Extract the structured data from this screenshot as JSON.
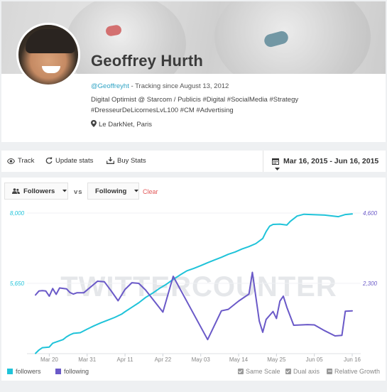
{
  "profile": {
    "name": "Geoffrey Hurth",
    "handle": "@Geoffreyht",
    "tracking": " - Tracking since August 13, 2012",
    "bio": "Digital Optimist @ Starcom / Publicis #Digital #SocialMedia #Strategy #DresseurDeLicornesLvL100 #CM #Advertising",
    "location": "Le DarkNet, Paris"
  },
  "toolbar": {
    "track_label": "Track",
    "update_label": "Update stats",
    "buy_label": "Buy Stats",
    "date_range": "Mar 16, 2015 - Jun 16, 2015"
  },
  "controls": {
    "metric1": "Followers",
    "vs": "vs",
    "metric2": "Following",
    "clear": "Clear"
  },
  "legend": {
    "followers": "followers",
    "following": "following",
    "same_scale": "Same Scale",
    "dual_axis": "Dual axis",
    "relative_growth": "Relative Growth"
  },
  "options": {
    "same_scale": true,
    "dual_axis": true,
    "relative_growth": false
  },
  "colors": {
    "followers": "#1fc3d9",
    "following": "#6a59c8",
    "clear": "#e25858",
    "handle": "#2fa3c4"
  },
  "watermark": "TWITTERCOUNTER",
  "chart_data": {
    "type": "line",
    "dual_axis": true,
    "x_ticks": [
      "Mar 20",
      "Mar 31",
      "Apr 11",
      "Apr 22",
      "May 03",
      "May 14",
      "May 25",
      "Jun 05",
      "Jun 16"
    ],
    "y_left_ticks": [
      "8,000",
      "5,650"
    ],
    "y_right_ticks": [
      "4,600",
      "2,300"
    ],
    "ylim_left": [
      3300,
      8000
    ],
    "ylim_right": [
      0,
      4600
    ],
    "series": [
      {
        "name": "followers",
        "axis": "left",
        "points": [
          [
            "2015-03-16",
            3310
          ],
          [
            "2015-03-17",
            3420
          ],
          [
            "2015-03-18",
            3500
          ],
          [
            "2015-03-20",
            3520
          ],
          [
            "2015-03-21",
            3650
          ],
          [
            "2015-03-22",
            3690
          ],
          [
            "2015-03-24",
            3770
          ],
          [
            "2015-03-25",
            3860
          ],
          [
            "2015-03-26",
            3930
          ],
          [
            "2015-03-27",
            3980
          ],
          [
            "2015-03-29",
            4000
          ],
          [
            "2015-03-31",
            4120
          ],
          [
            "2015-04-02",
            4230
          ],
          [
            "2015-04-04",
            4330
          ],
          [
            "2015-04-06",
            4420
          ],
          [
            "2015-04-08",
            4510
          ],
          [
            "2015-04-10",
            4620
          ],
          [
            "2015-04-11",
            4700
          ],
          [
            "2015-04-13",
            4850
          ],
          [
            "2015-04-15",
            5000
          ],
          [
            "2015-04-17",
            5180
          ],
          [
            "2015-04-19",
            5320
          ],
          [
            "2015-04-21",
            5480
          ],
          [
            "2015-04-23",
            5620
          ],
          [
            "2015-04-25",
            5780
          ],
          [
            "2015-04-27",
            5930
          ],
          [
            "2015-04-29",
            6070
          ],
          [
            "2015-05-01",
            6150
          ],
          [
            "2015-05-03",
            6240
          ],
          [
            "2015-05-05",
            6340
          ],
          [
            "2015-05-07",
            6430
          ],
          [
            "2015-05-09",
            6520
          ],
          [
            "2015-05-11",
            6620
          ],
          [
            "2015-05-13",
            6700
          ],
          [
            "2015-05-15",
            6800
          ],
          [
            "2015-05-17",
            6880
          ],
          [
            "2015-05-19",
            6980
          ],
          [
            "2015-05-21",
            7150
          ],
          [
            "2015-05-22",
            7380
          ],
          [
            "2015-05-23",
            7560
          ],
          [
            "2015-05-24",
            7620
          ],
          [
            "2015-05-26",
            7630
          ],
          [
            "2015-05-28",
            7600
          ],
          [
            "2015-05-29",
            7720
          ],
          [
            "2015-05-31",
            7900
          ],
          [
            "2015-06-02",
            7960
          ],
          [
            "2015-06-04",
            7950
          ],
          [
            "2015-06-08",
            7930
          ],
          [
            "2015-06-12",
            7880
          ],
          [
            "2015-06-14",
            7950
          ],
          [
            "2015-06-16",
            7970
          ]
        ]
      },
      {
        "name": "following",
        "axis": "right",
        "points": [
          [
            "2015-03-16",
            1920
          ],
          [
            "2015-03-17",
            2050
          ],
          [
            "2015-03-18",
            2060
          ],
          [
            "2015-03-19",
            2050
          ],
          [
            "2015-03-20",
            1880
          ],
          [
            "2015-03-21",
            2130
          ],
          [
            "2015-03-22",
            1940
          ],
          [
            "2015-03-23",
            2150
          ],
          [
            "2015-03-25",
            2120
          ],
          [
            "2015-03-26",
            2000
          ],
          [
            "2015-03-27",
            1950
          ],
          [
            "2015-03-28",
            1990
          ],
          [
            "2015-03-30",
            1990
          ],
          [
            "2015-04-01",
            2180
          ],
          [
            "2015-04-03",
            2370
          ],
          [
            "2015-04-05",
            2350
          ],
          [
            "2015-04-07",
            2050
          ],
          [
            "2015-04-09",
            1730
          ],
          [
            "2015-04-11",
            2100
          ],
          [
            "2015-04-13",
            2320
          ],
          [
            "2015-04-15",
            2300
          ],
          [
            "2015-04-17",
            2080
          ],
          [
            "2015-04-22",
            1360
          ],
          [
            "2015-04-25",
            2530
          ],
          [
            "2015-05-05",
            460
          ],
          [
            "2015-05-09",
            1400
          ],
          [
            "2015-05-11",
            1450
          ],
          [
            "2015-05-14",
            1720
          ],
          [
            "2015-05-17",
            1950
          ],
          [
            "2015-05-18",
            2660
          ],
          [
            "2015-05-20",
            1070
          ],
          [
            "2015-05-21",
            700
          ],
          [
            "2015-05-22",
            1120
          ],
          [
            "2015-05-24",
            1380
          ],
          [
            "2015-05-25",
            1150
          ],
          [
            "2015-05-26",
            1720
          ],
          [
            "2015-05-27",
            1880
          ],
          [
            "2015-05-28",
            1520
          ],
          [
            "2015-05-30",
            930
          ],
          [
            "2015-06-03",
            950
          ],
          [
            "2015-06-05",
            940
          ],
          [
            "2015-06-08",
            750
          ],
          [
            "2015-06-11",
            580
          ],
          [
            "2015-06-13",
            600
          ],
          [
            "2015-06-14",
            1390
          ],
          [
            "2015-06-16",
            1400
          ]
        ]
      }
    ]
  }
}
